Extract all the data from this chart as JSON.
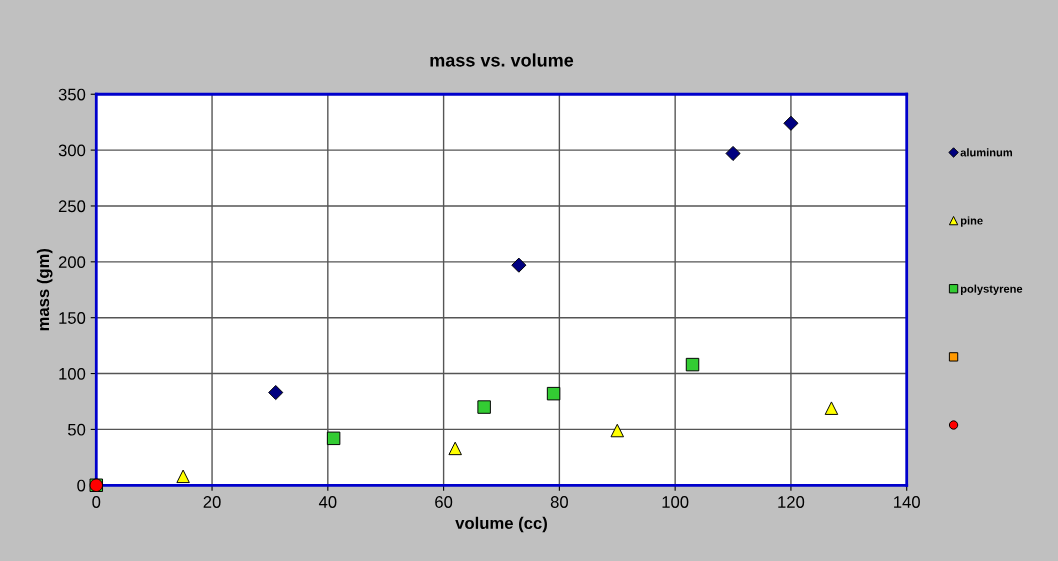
{
  "chart_data": {
    "type": "scatter",
    "title": "mass vs. volume",
    "xlabel": "volume (cc)",
    "ylabel": "mass (gm)",
    "xlim": [
      0,
      140
    ],
    "xticks": [
      0,
      20,
      40,
      60,
      80,
      100,
      120,
      140
    ],
    "ylim": [
      0,
      350
    ],
    "yticks": [
      0,
      50,
      100,
      150,
      200,
      250,
      300,
      350
    ],
    "grid": true,
    "legend": "right",
    "series": [
      {
        "name": "aluminum",
        "color": "#000080",
        "marker": "diamond",
        "x": [
          31,
          73,
          110,
          120
        ],
        "values": [
          83,
          197,
          297,
          324
        ]
      },
      {
        "name": "pine",
        "color": "#ffff00",
        "marker": "triangle",
        "x": [
          15,
          62,
          90,
          127
        ],
        "values": [
          8,
          33,
          49,
          69
        ]
      },
      {
        "name": "polystyrene",
        "color": "#33cc33",
        "marker": "square",
        "x": [
          0,
          41,
          67,
          79,
          103
        ],
        "values": [
          0,
          42,
          70,
          82,
          108
        ]
      },
      {
        "color": "#ff9900",
        "marker": "square"
      },
      {
        "color": "#ff0000",
        "marker": "circle",
        "x": [
          0
        ],
        "values": [
          0
        ]
      }
    ]
  }
}
